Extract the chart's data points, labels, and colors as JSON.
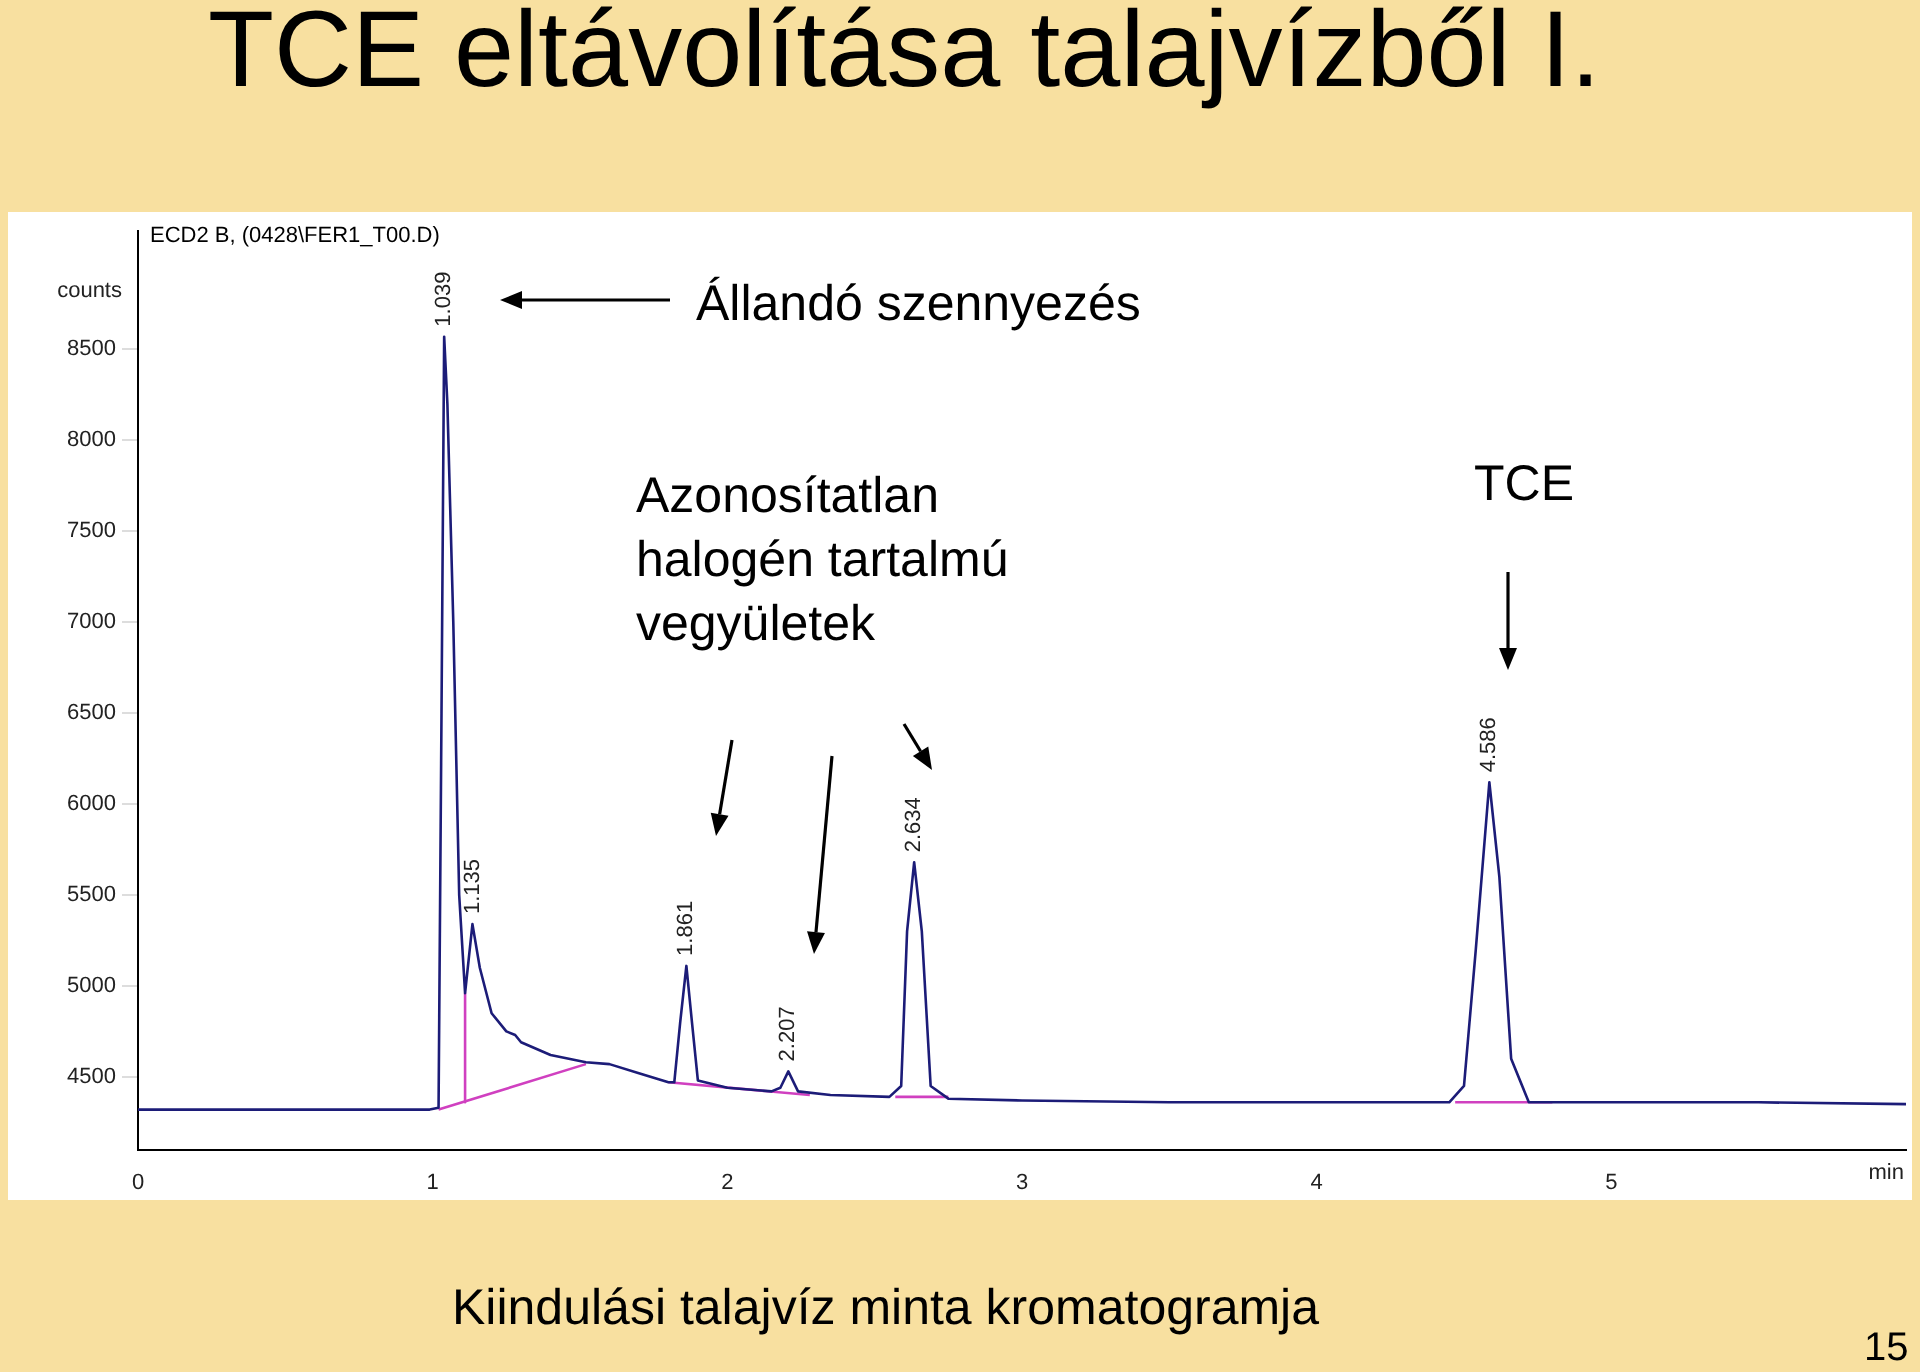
{
  "chart_data": {
    "type": "line",
    "title": "TCE eltávolítása talajvízből I.",
    "xlabel": "min",
    "ylabel": "counts",
    "xlim": [
      0,
      6
    ],
    "xticks": [
      0,
      1,
      2,
      3,
      4,
      5
    ],
    "ylim": [
      4100,
      9150
    ],
    "yticks": [
      4500,
      5000,
      5500,
      6000,
      6500,
      7000,
      7500,
      8000,
      8500
    ],
    "marker": "none",
    "series": [
      {
        "color": "#1c1c78",
        "x": [
          0,
          0.5,
          0.99,
          1.02,
          1.03,
          1.039,
          1.05,
          1.07,
          1.09,
          1.11,
          1.135,
          1.16,
          1.2,
          1.25,
          1.28,
          1.3,
          1.4,
          1.52,
          1.6,
          1.7,
          1.8,
          1.82,
          1.84,
          1.861,
          1.88,
          1.9,
          2.0,
          2.15,
          2.18,
          2.207,
          2.24,
          2.35,
          2.55,
          2.59,
          2.61,
          2.634,
          2.66,
          2.69,
          2.75,
          3.0,
          3.5,
          4.0,
          4.45,
          4.5,
          4.54,
          4.586,
          4.62,
          4.66,
          4.72,
          5.0,
          5.5,
          6.0
        ],
        "values": [
          4320,
          4320,
          4320,
          4330,
          6500,
          8570,
          8200,
          7000,
          5500,
          4960,
          5340,
          5100,
          4850,
          4750,
          4730,
          4690,
          4620,
          4580,
          4570,
          4520,
          4470,
          4470,
          4800,
          5110,
          4800,
          4480,
          4440,
          4420,
          4440,
          4530,
          4420,
          4400,
          4390,
          4450,
          5300,
          5680,
          5300,
          4450,
          4380,
          4370,
          4360,
          4360,
          4360,
          4450,
          5200,
          6120,
          5600,
          4600,
          4360,
          4360,
          4360,
          4350
        ]
      },
      {
        "color": "#d040c0",
        "x": [
          1.02,
          1.52
        ],
        "values": [
          4320,
          4570
        ]
      },
      {
        "color": "#d040c0",
        "x": [
          1.11,
          1.11
        ],
        "values": [
          4960,
          4360
        ]
      },
      {
        "color": "#d040c0",
        "x": [
          1.8,
          2.28
        ],
        "values": [
          4470,
          4400
        ]
      },
      {
        "color": "#d040c0",
        "x": [
          2.57,
          2.75
        ],
        "values": [
          4390,
          4390
        ]
      },
      {
        "color": "#d040c0",
        "x": [
          4.47,
          4.8
        ],
        "values": [
          4360,
          4360
        ]
      }
    ],
    "annotations": [
      "ECD2 B, (0428\\FER1_T00.D)",
      "Állandó szennyezés",
      "Azonosítatlan halogén tartalmú vegyületek",
      "TCE",
      "Kiindulási talajvíz minta kromatogramja",
      "15",
      {
        "text": "1.039",
        "x": 1.039,
        "y": 8570
      },
      {
        "text": "1.135",
        "x": 1.135,
        "y": 5340
      },
      {
        "text": "1.861",
        "x": 1.861,
        "y": 5110
      },
      {
        "text": "2.207",
        "x": 2.207,
        "y": 4530
      },
      {
        "text": "2.634",
        "x": 2.634,
        "y": 5680
      },
      {
        "text": "4.586",
        "x": 4.586,
        "y": 6120
      }
    ]
  }
}
